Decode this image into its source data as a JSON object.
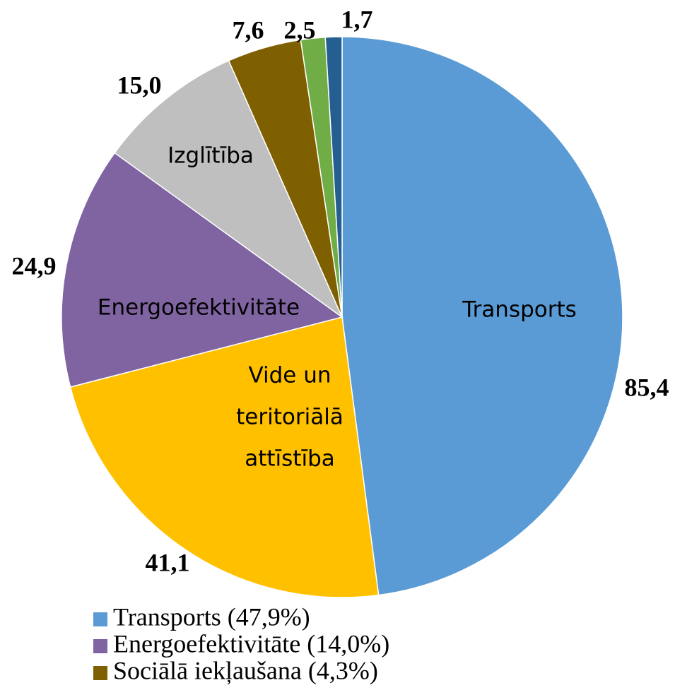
{
  "chart_data": {
    "type": "pie",
    "values": [
      85.4,
      41.1,
      24.9,
      15.0,
      7.6,
      2.5,
      1.7
    ],
    "value_labels": [
      "85,4",
      "41,1",
      "24,9",
      "15,0",
      "7,6",
      "2,5",
      "1,7"
    ],
    "colors": [
      "#5b9bd5",
      "#ffc000",
      "#8064a2",
      "#bfbfbf",
      "#7f6000",
      "#70ad47",
      "#255e91"
    ],
    "slice_labels": [
      [
        "Transports"
      ],
      [
        "Vide un",
        "teritoriālā",
        "attīstība"
      ],
      [
        "Energoefektivitāte"
      ],
      [
        "Izglītība"
      ],
      null,
      null,
      null
    ],
    "legend": [
      {
        "label": "Transports (47,9%)",
        "color": "#5b9bd5"
      },
      {
        "label": "Energoefektivitāte (14,0%)",
        "color": "#8064a2"
      },
      {
        "label": "Sociālā iekļaušana (4,3%)",
        "color": "#7f6000"
      }
    ]
  }
}
